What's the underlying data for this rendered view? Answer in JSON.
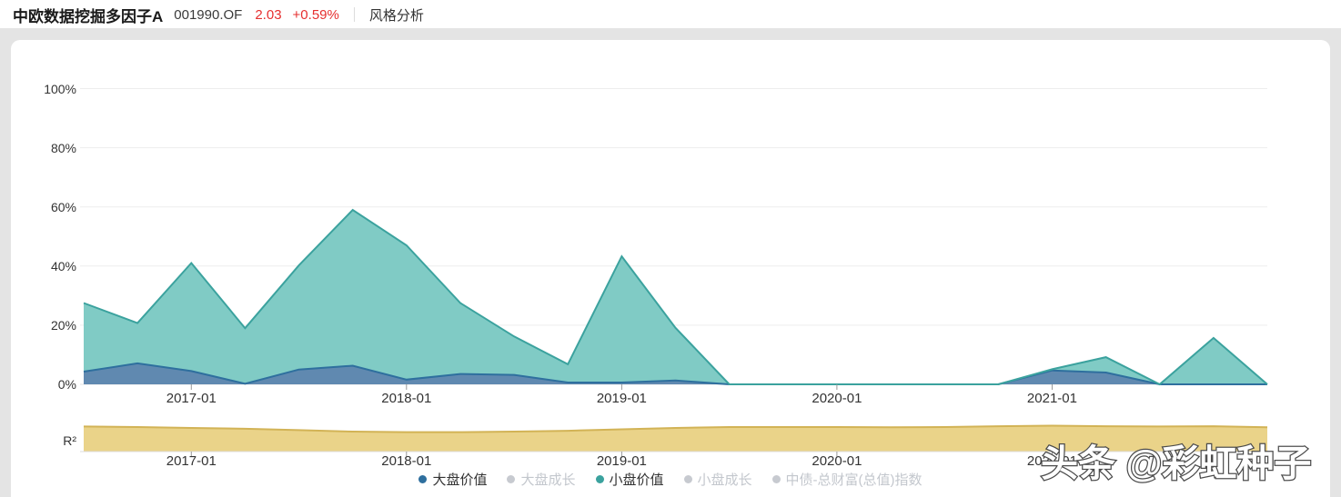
{
  "header": {
    "fund_name": "中欧数据挖掘多因子A",
    "fund_code": "001990.OF",
    "nav": "2.03",
    "change": "+0.59%",
    "tab": "风格分析"
  },
  "r2_label": "R²",
  "watermark": "头条 @彩虹种子",
  "colors": {
    "blue_stroke": "#2e6f9e",
    "blue_fill": "#6089b0",
    "teal_stroke": "#3ba29e",
    "teal_fill": "#80cbc5",
    "yellow_stroke": "#d2b356",
    "yellow_fill": "#ead389",
    "inactive_dot": "#c7cad0",
    "inactive_text": "#c3c7cd",
    "active_text": "#333333",
    "red": "#e62f2f",
    "grid": "#ededed",
    "axis": "#dcdcdc",
    "tick": "#9a9a9a",
    "page_gray": "#e4e4e4"
  },
  "legend": [
    {
      "label": "大盘价值",
      "color": "#2e6f9e",
      "active": true
    },
    {
      "label": "大盘成长",
      "color": "#c7cad0",
      "active": false
    },
    {
      "label": "小盘价值",
      "color": "#3ba29e",
      "active": true
    },
    {
      "label": "小盘成长",
      "color": "#c7cad0",
      "active": false
    },
    {
      "label": "中债-总财富(总值)指数",
      "color": "#c7cad0",
      "active": false
    }
  ],
  "chart_data": [
    {
      "type": "area",
      "title": "风格分析",
      "stacked": true,
      "grid": true,
      "legend_position": "bottom",
      "ylim": [
        0,
        100
      ],
      "x": [
        "2016-07",
        "2016-10",
        "2017-01",
        "2017-04",
        "2017-07",
        "2017-10",
        "2018-01",
        "2018-04",
        "2018-07",
        "2018-10",
        "2019-01",
        "2019-04",
        "2019-07",
        "2019-10",
        "2020-01",
        "2020-04",
        "2020-07",
        "2020-10",
        "2021-01",
        "2021-04",
        "2021-07",
        "2021-10",
        "2022-01"
      ],
      "series": [
        {
          "name": "大盘价值",
          "values": [
            4.3,
            7.1,
            4.5,
            0.2,
            5.0,
            6.3,
            1.6,
            3.5,
            3.2,
            0.6,
            0.6,
            1.3,
            0,
            0,
            0,
            0,
            0,
            0,
            4.7,
            4.0,
            0,
            0,
            0
          ]
        },
        {
          "name": "小盘价值",
          "values": [
            23.2,
            13.6,
            36.5,
            18.8,
            35.2,
            52.7,
            45.4,
            24.0,
            13.0,
            6.2,
            42.7,
            17.8,
            0,
            0,
            0,
            0,
            0,
            0,
            0.4,
            5.2,
            0,
            15.7,
            0
          ]
        }
      ],
      "hidden_series": [
        "大盘成长",
        "小盘成长",
        "中债-总财富(总值)指数"
      ],
      "y_ticks": [
        {
          "label": "0%",
          "value": 0
        },
        {
          "label": "20%",
          "value": 20
        },
        {
          "label": "40%",
          "value": 40
        },
        {
          "label": "60%",
          "value": 60
        },
        {
          "label": "80%",
          "value": 80
        },
        {
          "label": "100%",
          "value": 100
        }
      ],
      "x_ticks": [
        {
          "label": "2017-01",
          "index": 2
        },
        {
          "label": "2018-01",
          "index": 6
        },
        {
          "label": "2019-01",
          "index": 10
        },
        {
          "label": "2020-01",
          "index": 14
        },
        {
          "label": "2021-01",
          "index": 18
        }
      ]
    },
    {
      "type": "area",
      "title": "R²",
      "ylabel": "R²",
      "ylim": [
        0,
        1
      ],
      "x": [
        "2016-07",
        "2016-10",
        "2017-01",
        "2017-04",
        "2017-07",
        "2017-10",
        "2018-01",
        "2018-04",
        "2018-07",
        "2018-10",
        "2019-01",
        "2019-04",
        "2019-07",
        "2019-10",
        "2020-01",
        "2020-04",
        "2020-07",
        "2020-10",
        "2021-01",
        "2021-04",
        "2021-07",
        "2021-10",
        "2022-01"
      ],
      "series": [
        {
          "name": "R²",
          "values": [
            0.89,
            0.87,
            0.84,
            0.81,
            0.76,
            0.71,
            0.69,
            0.69,
            0.71,
            0.74,
            0.79,
            0.84,
            0.87,
            0.87,
            0.87,
            0.86,
            0.87,
            0.9,
            0.92,
            0.9,
            0.89,
            0.9,
            0.86
          ]
        }
      ],
      "x_ticks": [
        {
          "label": "2017-01",
          "index": 2
        },
        {
          "label": "2018-01",
          "index": 6
        },
        {
          "label": "2019-01",
          "index": 10
        },
        {
          "label": "2020-01",
          "index": 14
        },
        {
          "label": "2021-01",
          "index": 18
        }
      ]
    }
  ]
}
